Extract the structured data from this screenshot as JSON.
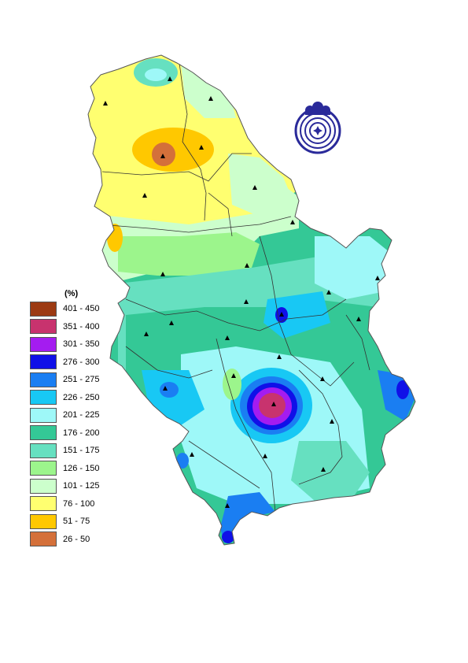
{
  "legend": {
    "title": "(%)",
    "items": [
      {
        "label": "401 - 450",
        "color": "#9c3a12"
      },
      {
        "label": "351 - 400",
        "color": "#c8336e"
      },
      {
        "label": "301 - 350",
        "color": "#a41cf0"
      },
      {
        "label": "276 - 300",
        "color": "#1010e8"
      },
      {
        "label": "251 - 275",
        "color": "#1a7ef2"
      },
      {
        "label": "226 - 250",
        "color": "#18c8f4"
      },
      {
        "label": "201 - 225",
        "color": "#9ef8f8"
      },
      {
        "label": "176 - 200",
        "color": "#34c896"
      },
      {
        "label": "151 - 175",
        "color": "#66e0c0"
      },
      {
        "label": "126 - 150",
        "color": "#9cf58c"
      },
      {
        "label": "101 - 125",
        "color": "#ccffcc"
      },
      {
        "label": "76 - 100",
        "color": "#ffff70"
      },
      {
        "label": "51 - 75",
        "color": "#ffc800"
      },
      {
        "label": "26 - 50",
        "color": "#d4703a"
      }
    ]
  },
  "stations_icon": "triangle-station-icon",
  "logo_icon": "institute-logo-icon"
}
